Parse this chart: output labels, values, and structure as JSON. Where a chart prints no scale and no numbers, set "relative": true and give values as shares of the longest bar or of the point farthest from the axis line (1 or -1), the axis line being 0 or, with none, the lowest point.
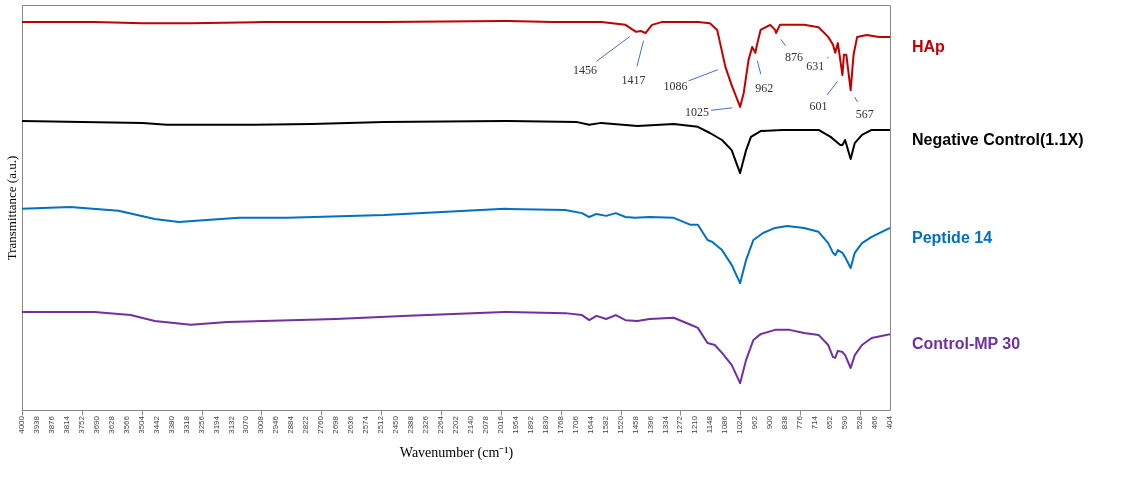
{
  "chart_data": {
    "type": "line",
    "relative": true,
    "xlabel": "Wavenumber (cm⁻¹)",
    "ylabel": "Transmittance (a.u.)",
    "xlim": [
      4000,
      404
    ],
    "xticks": [
      4000,
      3938,
      3876,
      3814,
      3752,
      3690,
      3628,
      3566,
      3504,
      3442,
      3380,
      3318,
      3256,
      3194,
      3132,
      3070,
      3008,
      2946,
      2884,
      2822,
      2760,
      2698,
      2636,
      2574,
      2512,
      2450,
      2388,
      2326,
      2264,
      2202,
      2140,
      2078,
      2016,
      1954,
      1892,
      1830,
      1768,
      1706,
      1644,
      1582,
      1520,
      1458,
      1396,
      1334,
      1272,
      1210,
      1148,
      1086,
      1024,
      962,
      900,
      838,
      776,
      714,
      652,
      590,
      528,
      466,
      404
    ],
    "legend": false,
    "grid": false,
    "line_style": "solid",
    "series": [
      {
        "name": "HAp",
        "color": "#c00000",
        "x": [
          4000,
          3700,
          3500,
          3300,
          3000,
          2500,
          2000,
          1800,
          1600,
          1500,
          1456,
          1435,
          1417,
          1390,
          1350,
          1200,
          1150,
          1120,
          1086,
          1060,
          1025,
          1010,
          990,
          975,
          962,
          955,
          940,
          900,
          880,
          876,
          860,
          760,
          700,
          660,
          640,
          631,
          620,
          601,
          595,
          585,
          567,
          555,
          540,
          500,
          450,
          404
        ],
        "values": [
          0.997,
          0.997,
          0.994,
          0.994,
          0.997,
          0.997,
          1.0,
          0.997,
          0.997,
          0.99,
          0.972,
          0.974,
          0.969,
          0.99,
          0.997,
          0.997,
          0.994,
          0.977,
          0.882,
          0.835,
          0.779,
          0.815,
          0.9,
          0.933,
          0.918,
          0.939,
          0.977,
          0.99,
          0.977,
          0.969,
          0.99,
          0.99,
          0.984,
          0.959,
          0.939,
          0.918,
          0.943,
          0.861,
          0.913,
          0.913,
          0.822,
          0.913,
          0.959,
          0.964,
          0.959,
          0.959
        ]
      },
      {
        "name": "Negative Control(1.1X)",
        "color": "#000000",
        "x": [
          4000,
          3500,
          3400,
          3100,
          2800,
          2500,
          2000,
          1700,
          1650,
          1600,
          1450,
          1300,
          1200,
          1150,
          1100,
          1060,
          1025,
          1000,
          980,
          940,
          850,
          700,
          650,
          610,
          601,
          590,
          567,
          550,
          520,
          480,
          404
        ],
        "values": [
          0.743,
          0.738,
          0.733,
          0.733,
          0.735,
          0.74,
          0.743,
          0.74,
          0.733,
          0.738,
          0.73,
          0.735,
          0.728,
          0.712,
          0.694,
          0.668,
          0.609,
          0.668,
          0.702,
          0.717,
          0.72,
          0.72,
          0.702,
          0.681,
          0.681,
          0.694,
          0.645,
          0.686,
          0.707,
          0.72,
          0.72
        ]
      },
      {
        "name": "Peptide 14",
        "color": "#0070c0",
        "x": [
          4000,
          3800,
          3600,
          3450,
          3350,
          3250,
          3100,
          2900,
          2500,
          2000,
          1750,
          1680,
          1650,
          1620,
          1580,
          1540,
          1500,
          1460,
          1400,
          1300,
          1230,
          1200,
          1160,
          1140,
          1100,
          1060,
          1025,
          1000,
          970,
          930,
          880,
          830,
          760,
          700,
          660,
          640,
          630,
          620,
          601,
          590,
          567,
          550,
          520,
          480,
          404
        ],
        "values": [
          0.517,
          0.522,
          0.512,
          0.491,
          0.483,
          0.488,
          0.494,
          0.494,
          0.501,
          0.517,
          0.514,
          0.506,
          0.496,
          0.504,
          0.499,
          0.506,
          0.496,
          0.494,
          0.496,
          0.494,
          0.476,
          0.476,
          0.437,
          0.432,
          0.411,
          0.373,
          0.326,
          0.386,
          0.437,
          0.455,
          0.468,
          0.473,
          0.468,
          0.458,
          0.429,
          0.404,
          0.398,
          0.411,
          0.404,
          0.393,
          0.365,
          0.404,
          0.429,
          0.445,
          0.468
        ]
      },
      {
        "name": "Control-MP 30",
        "color": "#7030a0",
        "x": [
          4000,
          3700,
          3550,
          3450,
          3300,
          3150,
          3000,
          2700,
          2400,
          2000,
          1750,
          1680,
          1650,
          1620,
          1580,
          1540,
          1500,
          1450,
          1400,
          1300,
          1230,
          1200,
          1160,
          1130,
          1100,
          1060,
          1025,
          1000,
          970,
          940,
          880,
          820,
          760,
          700,
          660,
          640,
          631,
          620,
          601,
          590,
          567,
          550,
          520,
          480,
          404
        ],
        "values": [
          0.252,
          0.252,
          0.244,
          0.229,
          0.219,
          0.226,
          0.229,
          0.234,
          0.242,
          0.252,
          0.249,
          0.244,
          0.231,
          0.242,
          0.234,
          0.244,
          0.231,
          0.229,
          0.234,
          0.237,
          0.219,
          0.211,
          0.172,
          0.167,
          0.147,
          0.116,
          0.069,
          0.129,
          0.18,
          0.195,
          0.206,
          0.206,
          0.198,
          0.193,
          0.167,
          0.136,
          0.134,
          0.152,
          0.149,
          0.141,
          0.108,
          0.141,
          0.167,
          0.185,
          0.195
        ]
      }
    ],
    "annotations": [
      {
        "text": "1456",
        "x": 1456,
        "y": 0.972
      },
      {
        "text": "1417",
        "x": 1417,
        "y": 0.969
      },
      {
        "text": "1086",
        "x": 1086,
        "y": 0.882
      },
      {
        "text": "1025",
        "x": 1025,
        "y": 0.779
      },
      {
        "text": "962",
        "x": 962,
        "y": 0.918
      },
      {
        "text": "876",
        "x": 876,
        "y": 0.969
      },
      {
        "text": "631",
        "x": 631,
        "y": 0.918
      },
      {
        "text": "601",
        "x": 601,
        "y": 0.861
      },
      {
        "text": "567",
        "x": 567,
        "y": 0.822
      }
    ]
  }
}
